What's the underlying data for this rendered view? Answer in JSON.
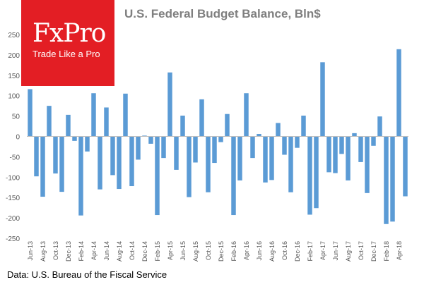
{
  "logo": {
    "brand": "FxPro",
    "tagline": "Trade Like a Pro",
    "color": "#e31e24"
  },
  "chart_data": {
    "type": "bar",
    "title": "U.S. Federal Budget Balance, Bln$",
    "source": "Data: U.S. Bureau of the Fiscal Service",
    "xlabel": "",
    "ylabel": "",
    "ylim": [
      -250,
      250
    ],
    "yticks": [
      -250,
      -200,
      -150,
      -100,
      -50,
      0,
      50,
      100,
      150,
      200,
      250
    ],
    "grid": false,
    "bar_color": "#5b9bd5",
    "categories": [
      "Jun-13",
      "Jul-13",
      "Aug-13",
      "Sep-13",
      "Oct-13",
      "Nov-13",
      "Dec-13",
      "Jan-14",
      "Feb-14",
      "Mar-14",
      "Apr-14",
      "May-14",
      "Jun-14",
      "Jul-14",
      "Aug-14",
      "Sep-14",
      "Oct-14",
      "Nov-14",
      "Dec-14",
      "Jan-15",
      "Feb-15",
      "Mar-15",
      "Apr-15",
      "May-15",
      "Jun-15",
      "Jul-15",
      "Aug-15",
      "Sep-15",
      "Oct-15",
      "Nov-15",
      "Dec-15",
      "Jan-16",
      "Feb-16",
      "Mar-16",
      "Apr-16",
      "May-16",
      "Jun-16",
      "Jul-16",
      "Aug-16",
      "Sep-16",
      "Oct-16",
      "Nov-16",
      "Dec-16",
      "Jan-17",
      "Feb-17",
      "Mar-17",
      "Apr-17",
      "May-17",
      "Jun-17",
      "Jul-17",
      "Aug-17",
      "Sep-17",
      "Oct-17",
      "Nov-17",
      "Dec-17",
      "Jan-18",
      "Feb-18",
      "Mar-18",
      "Apr-18",
      "May-18"
    ],
    "tick_labels": [
      "Jun-13",
      "Aug-13",
      "Oct-13",
      "Dec-13",
      "Feb-14",
      "Apr-14",
      "Jun-14",
      "Aug-14",
      "Oct-14",
      "Dec-14",
      "Feb-15",
      "Apr-15",
      "Jun-15",
      "Aug-15",
      "Oct-15",
      "Dec-15",
      "Feb-16",
      "Apr-16",
      "Jun-16",
      "Aug-16",
      "Oct-16",
      "Dec-16",
      "Feb-17",
      "Apr-17",
      "Jun-17",
      "Aug-17",
      "Oct-17",
      "Dec-17",
      "Feb-18",
      "Apr-18"
    ],
    "values": [
      116,
      -98,
      -148,
      75,
      -91,
      -136,
      53,
      -11,
      -194,
      -37,
      106,
      -130,
      71,
      -95,
      -129,
      105,
      -122,
      -57,
      2,
      -18,
      -193,
      -53,
      157,
      -82,
      51,
      -149,
      -64,
      91,
      -137,
      -65,
      -14,
      55,
      -193,
      -108,
      106,
      -53,
      6,
      -113,
      -107,
      33,
      -45,
      -137,
      -28,
      51,
      -192,
      -176,
      182,
      -88,
      -90,
      -43,
      -108,
      8,
      -63,
      -139,
      -23,
      49,
      -215,
      -209,
      214,
      -147
    ]
  }
}
